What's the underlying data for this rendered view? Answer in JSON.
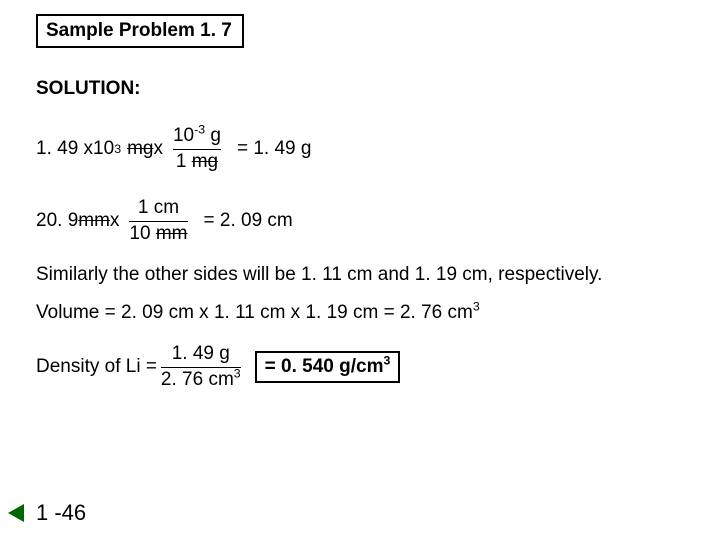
{
  "title": "Sample Problem 1. 7",
  "solution_label": "SOLUTION:",
  "eq1": {
    "lhs_num": "1. 49 x ",
    "lhs_exp_base": "10",
    "lhs_exp_sup": "3",
    "lhs_unit": "mg",
    "lhs_times": " x",
    "frac_num_base": "10",
    "frac_num_sup": "-3",
    "frac_num_unit": " g",
    "frac_den_val": "1 ",
    "frac_den_unit": "mg",
    "rhs": "= 1. 49 g"
  },
  "eq2": {
    "lhs_num": "20. 9 ",
    "lhs_unit": "mm",
    "lhs_times": " x",
    "frac_num": "1 cm",
    "frac_den_val": "10 ",
    "frac_den_unit": "mm",
    "rhs": "= 2. 09 cm"
  },
  "similar_line": "Similarly the other sides will be 1. 11 cm and 1. 19 cm, respectively.",
  "volume_line_a": "Volume = 2. 09 cm x 1. 11 cm x 1. 19 cm = 2. 76 cm",
  "volume_sup": "3",
  "eq3": {
    "label": "Density of Li = ",
    "frac_num": "1. 49 g",
    "frac_den_a": "2. 76 cm",
    "frac_den_sup": "3",
    "answer_a": "= 0. 540 g/cm",
    "answer_sup": "3"
  },
  "page_num": "1 -46"
}
